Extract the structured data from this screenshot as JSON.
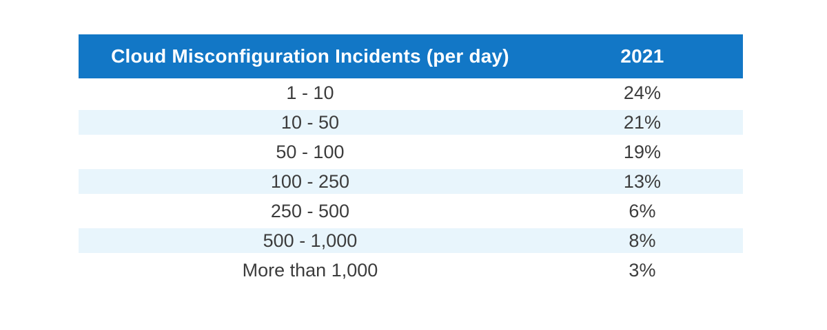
{
  "chart_data": {
    "type": "table",
    "title": "Cloud Misconfiguration Incidents (per day)",
    "columns": [
      "Cloud Misconfiguration Incidents (per day)",
      "2021"
    ],
    "rows": [
      {
        "label": "1 - 10",
        "value": "24%"
      },
      {
        "label": "10 - 50",
        "value": "21%"
      },
      {
        "label": "50 - 100",
        "value": "19%"
      },
      {
        "label": "100 - 250",
        "value": "13%"
      },
      {
        "label": "250 - 500",
        "value": "6%"
      },
      {
        "label": "500 - 1,000",
        "value": "8%"
      },
      {
        "label": "More than 1,000",
        "value": "3%"
      }
    ],
    "layout_hints": {
      "striped": true,
      "striped_rows": "2nd, 4th, 6th",
      "text_alignment": "center",
      "header_position": "top"
    }
  },
  "colors": {
    "header_bg": "#1277c6",
    "header_text": "#ffffff",
    "stripe_bg": "#e8f5fc",
    "row_bg": "#ffffff",
    "row_text": "#3c3c3c",
    "page_bg": "#ffffff"
  }
}
